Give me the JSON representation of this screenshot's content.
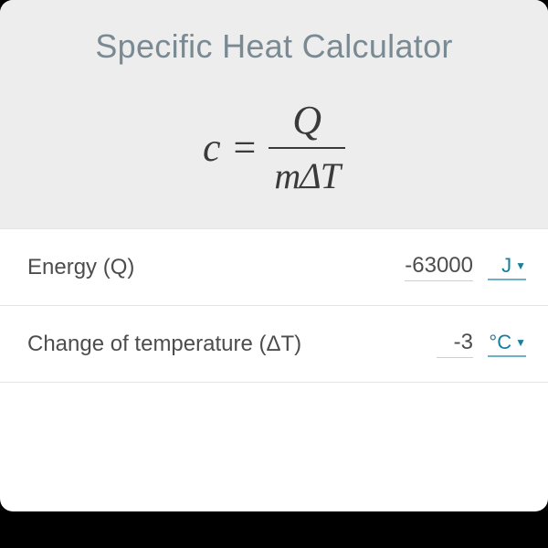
{
  "title": "Specific Heat Calculator",
  "formula": {
    "lhs": "c",
    "numerator": "Q",
    "denominator": "mΔT"
  },
  "colors": {
    "header_bg": "#ededed",
    "title_color": "#7a8a93",
    "text_color": "#4d4d4d",
    "accent": "#177e9e",
    "accent_underline": "#6fb1c4",
    "divider": "#e4e4e4",
    "card_bg": "#ffffff",
    "page_bg": "#000000"
  },
  "rows": [
    {
      "label": "Energy (Q)",
      "value": "-63000",
      "unit": "J"
    },
    {
      "label": "Change of temperature (ΔT)",
      "value": "-3",
      "unit": "°C"
    }
  ]
}
